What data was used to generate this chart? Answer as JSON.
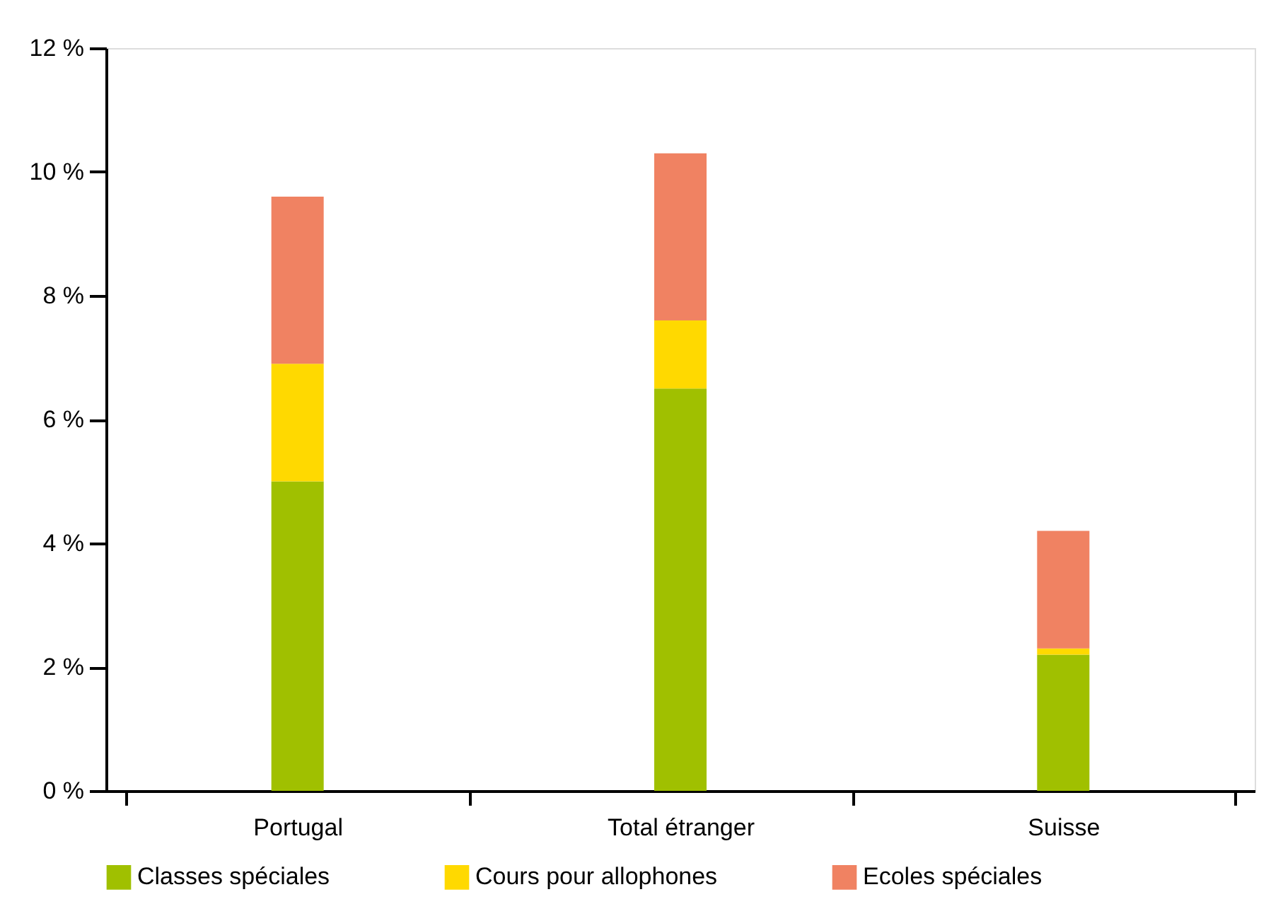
{
  "chart_data": {
    "type": "bar",
    "stacked": true,
    "categories": [
      "Portugal",
      "Total étranger",
      "Suisse"
    ],
    "series": [
      {
        "name": "Classes spéciales",
        "color": "#a0c000",
        "values": [
          5.0,
          6.5,
          2.2
        ]
      },
      {
        "name": "Cours pour allophones",
        "color": "#ffd900",
        "values": [
          1.9,
          1.1,
          0.1
        ]
      },
      {
        "name": "Ecoles spéciales",
        "color": "#f08262",
        "values": [
          2.7,
          2.7,
          1.9
        ]
      }
    ],
    "ylim": [
      0,
      12
    ],
    "yticks": [
      {
        "value": 0,
        "label": "0 %"
      },
      {
        "value": 2,
        "label": "2 %"
      },
      {
        "value": 4,
        "label": "4 %"
      },
      {
        "value": 6,
        "label": "6 %"
      },
      {
        "value": 8,
        "label": "8 %"
      },
      {
        "value": 10,
        "label": "10 %"
      },
      {
        "value": 12,
        "label": "12 %"
      }
    ],
    "grid": false,
    "legend": "bottom"
  }
}
